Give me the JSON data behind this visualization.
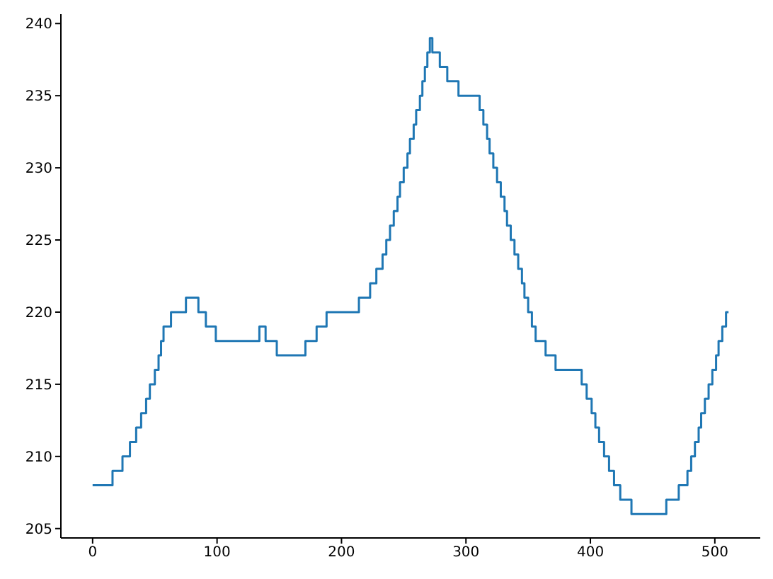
{
  "chart_data": {
    "type": "step",
    "xlim": [
      -25.5,
      536.5
    ],
    "ylim": [
      204.35,
      240.65
    ],
    "xticks": [
      0,
      100,
      200,
      300,
      400,
      500
    ],
    "yticks": [
      205,
      210,
      215,
      220,
      225,
      230,
      235,
      240
    ],
    "grid": false,
    "legend": false,
    "series": [
      {
        "color": "#1f77b4",
        "x": [
          0,
          16,
          24,
          30,
          35,
          39,
          43,
          46,
          50,
          53,
          55,
          57,
          63,
          75,
          85,
          91,
          99,
          134,
          139,
          148,
          171,
          180,
          188,
          214,
          223,
          228,
          233,
          236,
          239,
          242,
          245,
          247,
          250,
          253,
          255,
          258,
          260,
          263,
          265,
          267,
          269,
          271,
          273,
          279,
          285,
          294,
          311,
          314,
          317,
          319,
          322,
          325,
          328,
          331,
          333,
          336,
          339,
          342,
          345,
          347,
          350,
          353,
          356,
          364,
          372,
          393,
          397,
          401,
          404,
          407,
          411,
          415,
          419,
          424,
          433,
          461,
          471,
          478,
          481,
          484,
          487,
          489,
          492,
          495,
          498,
          501,
          503,
          506,
          509,
          511
        ],
        "values": [
          208,
          209,
          210,
          211,
          212,
          213,
          214,
          215,
          216,
          217,
          218,
          219,
          220,
          221,
          220,
          219,
          218,
          219,
          218,
          217,
          218,
          219,
          220,
          221,
          222,
          223,
          224,
          225,
          226,
          227,
          228,
          229,
          230,
          231,
          232,
          233,
          234,
          235,
          236,
          237,
          238,
          239,
          238,
          237,
          236,
          235,
          234,
          233,
          232,
          231,
          230,
          229,
          228,
          227,
          226,
          225,
          224,
          223,
          222,
          221,
          220,
          219,
          218,
          217,
          216,
          215,
          214,
          213,
          212,
          211,
          210,
          209,
          208,
          207,
          206,
          207,
          208,
          209,
          210,
          211,
          212,
          213,
          214,
          215,
          216,
          217,
          218,
          219,
          220,
          220
        ]
      }
    ]
  }
}
